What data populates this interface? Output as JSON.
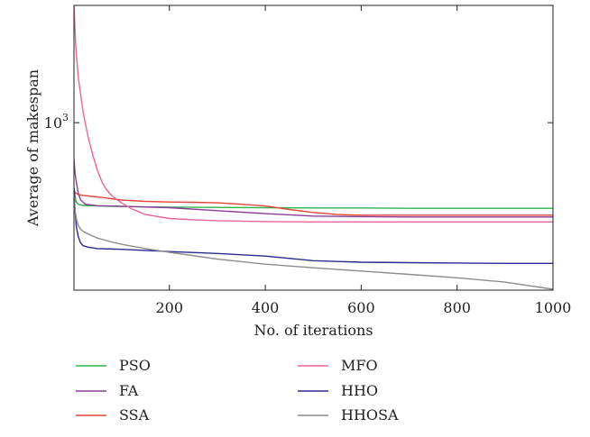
{
  "chart_data": {
    "type": "line",
    "title": "",
    "xlabel": "No. of iterations",
    "ylabel": "Average of makespan",
    "xlim": [
      1,
      1000
    ],
    "ylim": [
      400,
      1900
    ],
    "yscale": "log",
    "x_ticks": [
      200,
      400,
      600,
      800,
      1000
    ],
    "y_ticks": [
      {
        "value": 1000,
        "base": "10",
        "exp": "3"
      }
    ],
    "grid": false,
    "legend": {
      "placement": "bottom",
      "columns": 2
    },
    "series": [
      {
        "name": "PSO",
        "color": "#2db34a",
        "x": [
          1,
          5,
          10,
          20,
          50,
          100,
          200,
          300,
          400,
          500,
          600,
          700,
          800,
          900,
          1000
        ],
        "y": [
          700,
          650,
          640,
          636,
          634,
          632,
          630,
          629,
          628,
          627,
          627,
          626,
          626,
          626,
          626
        ]
      },
      {
        "name": "FA",
        "color": "#8e3c98",
        "x": [
          1,
          3,
          6,
          10,
          15,
          25,
          50,
          100,
          200,
          300,
          400,
          500,
          600,
          700,
          800,
          900,
          1000
        ],
        "y": [
          820,
          760,
          720,
          680,
          655,
          640,
          635,
          633,
          628,
          618,
          608,
          600,
          598,
          597,
          597,
          597,
          597
        ]
      },
      {
        "name": "SSA",
        "color": "#e0463c",
        "x": [
          1,
          5,
          10,
          20,
          40,
          60,
          100,
          150,
          200,
          250,
          300,
          350,
          400,
          450,
          500,
          550,
          600,
          700,
          800,
          900,
          1000
        ],
        "y": [
          690,
          680,
          675,
          672,
          668,
          664,
          655,
          650,
          648,
          647,
          645,
          640,
          634,
          622,
          612,
          605,
          603,
          603,
          603,
          603,
          603
        ]
      },
      {
        "name": "MFO",
        "color": "#e8649a",
        "x": [
          1,
          5,
          10,
          20,
          30,
          40,
          50,
          60,
          70,
          80,
          100,
          120,
          150,
          200,
          250,
          300,
          400,
          500,
          600,
          700,
          800,
          900,
          1000
        ],
        "y": [
          1900,
          1500,
          1280,
          1060,
          930,
          840,
          770,
          720,
          690,
          670,
          645,
          625,
          605,
          592,
          588,
          585,
          582,
          581,
          581,
          581,
          581,
          581,
          581
        ]
      },
      {
        "name": "HHO",
        "color": "#2b2a8e",
        "x": [
          1,
          3,
          6,
          10,
          15,
          20,
          30,
          50,
          100,
          200,
          300,
          400,
          500,
          600,
          700,
          800,
          900,
          1000
        ],
        "y": [
          700,
          620,
          565,
          535,
          518,
          510,
          506,
          502,
          500,
          494,
          489,
          482,
          470,
          466,
          465,
          464,
          463,
          463
        ]
      },
      {
        "name": "HHOSA",
        "color": "#8c8c8c",
        "x": [
          1,
          3,
          6,
          10,
          15,
          20,
          30,
          50,
          75,
          100,
          150,
          200,
          300,
          400,
          500,
          600,
          700,
          800,
          900,
          1000
        ],
        "y": [
          680,
          620,
          590,
          570,
          558,
          552,
          544,
          532,
          522,
          514,
          502,
          492,
          474,
          461,
          452,
          444,
          436,
          428,
          418,
          402
        ]
      }
    ]
  }
}
